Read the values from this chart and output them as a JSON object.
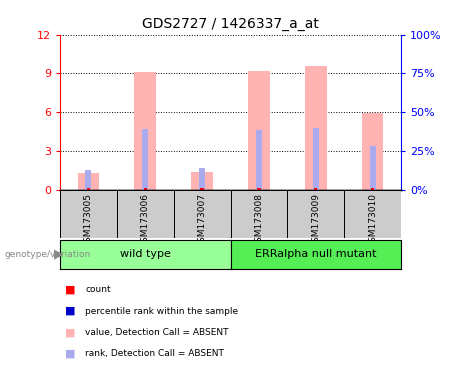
{
  "title": "GDS2727 / 1426337_a_at",
  "samples": [
    "GSM173005",
    "GSM173006",
    "GSM173007",
    "GSM173008",
    "GSM173009",
    "GSM173010"
  ],
  "ylim_left": [
    0,
    12
  ],
  "ylim_right": [
    0,
    100
  ],
  "yticks_left": [
    0,
    3,
    6,
    9,
    12
  ],
  "yticks_right": [
    0,
    25,
    50,
    75,
    100
  ],
  "yticklabels_right": [
    "0%",
    "25%",
    "50%",
    "75%",
    "100%"
  ],
  "pink_bar_heights": [
    1.3,
    9.1,
    1.4,
    9.2,
    9.6,
    5.9
  ],
  "blue_bar_heights": [
    1.55,
    4.7,
    1.65,
    4.65,
    4.8,
    3.4
  ],
  "pink_color": "#ffb3b3",
  "blue_color": "#aaaaee",
  "red_color": "#ff0000",
  "dark_blue_color": "#0000cc",
  "bg_label": "#cccccc",
  "bg_wt": "#99ff99",
  "bg_err": "#55ee55",
  "legend_items": [
    {
      "color": "#ff0000",
      "label": "count"
    },
    {
      "color": "#0000cc",
      "label": "percentile rank within the sample"
    },
    {
      "color": "#ffb3b3",
      "label": "value, Detection Call = ABSENT"
    },
    {
      "color": "#aaaaee",
      "label": "rank, Detection Call = ABSENT"
    }
  ],
  "genotype_label": "genotype/variation",
  "wt_label": "wild type",
  "err_label": "ERRalpha null mutant"
}
